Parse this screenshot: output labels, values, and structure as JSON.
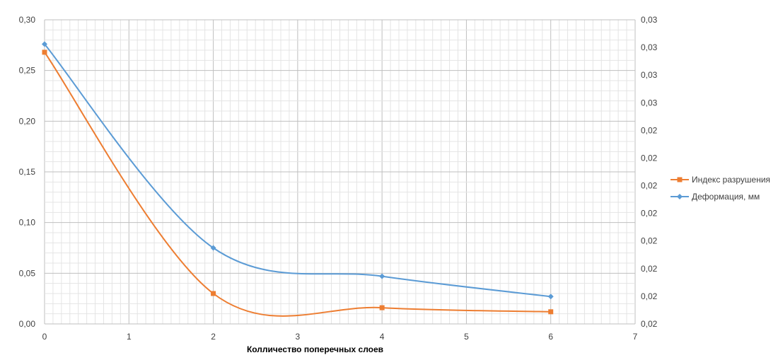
{
  "chart_data": {
    "type": "line",
    "xlabel": "Колличество поперечных слоев",
    "xlim": [
      0,
      7
    ],
    "x_ticks": [
      "0",
      "1",
      "2",
      "3",
      "4",
      "5",
      "6",
      "7"
    ],
    "ylim": [
      0,
      0.3
    ],
    "y_ticks": [
      "0,00",
      "0,05",
      "0,10",
      "0,15",
      "0,20",
      "0,25",
      "0,30"
    ],
    "y2_ticks": [
      "0,02",
      "0,02",
      "0,02",
      "0,02",
      "0,02",
      "0,02",
      "0,02",
      "0,02",
      "0,03",
      "0,03",
      "0,03",
      "0,03"
    ],
    "grid": true,
    "legend_position": "right",
    "series": [
      {
        "name": "Индекс разрушения",
        "color": "#ED7D31",
        "marker": "square",
        "axis": "left",
        "x": [
          0,
          2,
          4,
          6
        ],
        "values": [
          0.268,
          0.03,
          0.016,
          0.012
        ]
      },
      {
        "name": "Деформация, мм",
        "color": "#5B9BD5",
        "marker": "diamond",
        "axis": "left",
        "x": [
          0,
          2,
          4,
          6
        ],
        "values": [
          0.276,
          0.075,
          0.047,
          0.027
        ]
      }
    ]
  }
}
